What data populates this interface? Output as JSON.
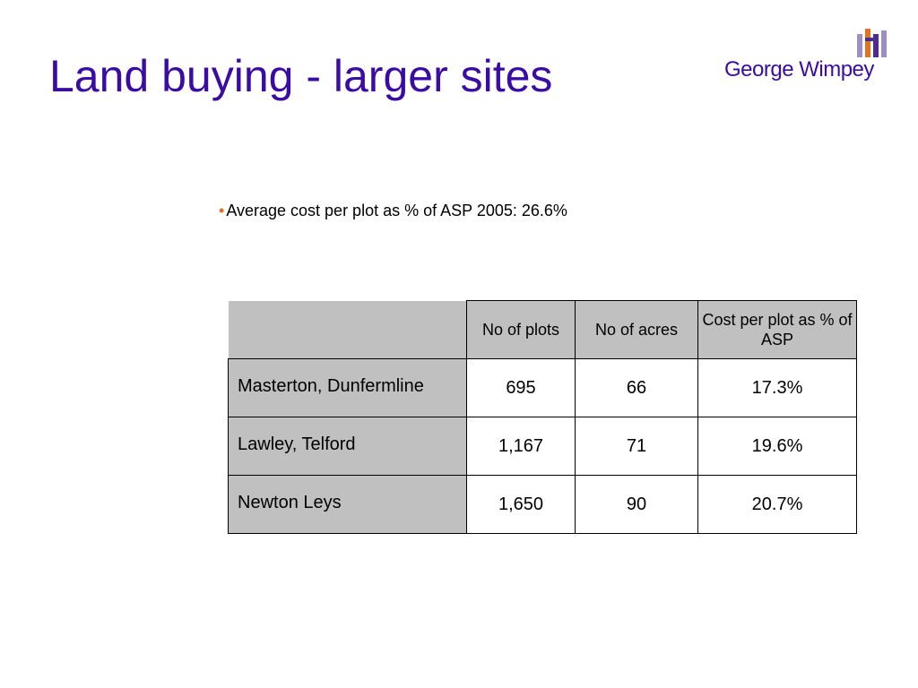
{
  "slide": {
    "title": "Land buying - larger sites",
    "logo_text": "George Wimpey",
    "bullet": "Average cost per plot as % of ASP 2005: 26.6%",
    "bullet_mark": "•"
  },
  "table": {
    "headers": [
      "No of plots",
      "No of acres",
      "Cost per plot as % of ASP"
    ],
    "rows": [
      {
        "site": "Masterton, Dunfermline",
        "plots": "695",
        "acres": "66",
        "cost_pct": "17.3%"
      },
      {
        "site": "Lawley, Telford",
        "plots": "1,167",
        "acres": "71",
        "cost_pct": "19.6%"
      },
      {
        "site": "Newton Leys",
        "plots": "1,650",
        "acres": "90",
        "cost_pct": "20.7%"
      }
    ]
  },
  "colors": {
    "title": "#3a0ca3",
    "bullet_mark": "#e37222",
    "table_shade": "#c0c0c0",
    "logo_purple": "#4b2c8f",
    "logo_orange": "#e37222",
    "logo_lilac": "#9d8fc4"
  }
}
